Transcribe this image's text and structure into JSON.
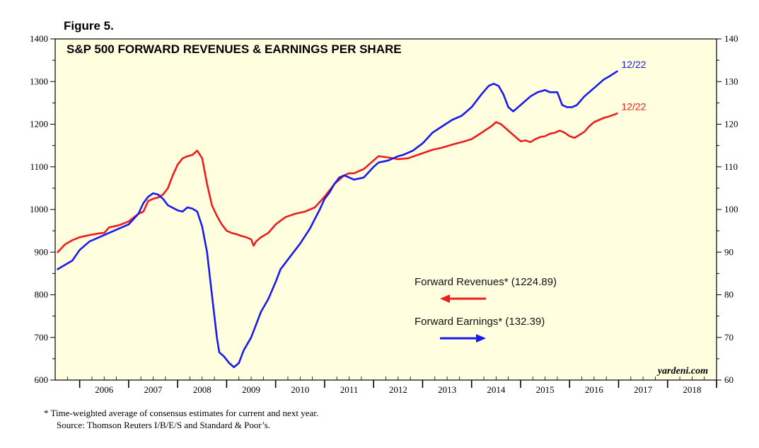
{
  "figure_label": "Figure 5.",
  "chart_data": {
    "type": "line",
    "title": "S&P 500 FORWARD REVENUES & EARNINGS PER SHARE",
    "x_range": [
      2005.5,
      2019.0
    ],
    "x_ticks": [
      "2006",
      "2007",
      "2008",
      "2009",
      "2010",
      "2011",
      "2012",
      "2013",
      "2014",
      "2015",
      "2016",
      "2017",
      "2018"
    ],
    "y_left": {
      "range": [
        600,
        1400
      ],
      "ticks": [
        "600",
        "700",
        "800",
        "900",
        "1000",
        "1100",
        "1200",
        "1300",
        "1400"
      ]
    },
    "y_right": {
      "range": [
        60,
        140
      ],
      "ticks": [
        "60",
        "70",
        "80",
        "90",
        "100",
        "110",
        "120",
        "130",
        "140"
      ]
    },
    "series": [
      {
        "name": "Forward Revenues* (1224.89)",
        "axis": "left",
        "color": "#ee1c1c",
        "end_label": "12/22",
        "points": [
          [
            2005.55,
            900
          ],
          [
            2005.7,
            918
          ],
          [
            2005.85,
            928
          ],
          [
            2006.0,
            935
          ],
          [
            2006.2,
            940
          ],
          [
            2006.4,
            944
          ],
          [
            2006.5,
            945
          ],
          [
            2006.6,
            958
          ],
          [
            2006.8,
            963
          ],
          [
            2007.0,
            972
          ],
          [
            2007.2,
            990
          ],
          [
            2007.3,
            995
          ],
          [
            2007.4,
            1020
          ],
          [
            2007.5,
            1025
          ],
          [
            2007.6,
            1028
          ],
          [
            2007.7,
            1035
          ],
          [
            2007.8,
            1050
          ],
          [
            2007.9,
            1080
          ],
          [
            2008.0,
            1105
          ],
          [
            2008.1,
            1120
          ],
          [
            2008.2,
            1125
          ],
          [
            2008.3,
            1128
          ],
          [
            2008.4,
            1138
          ],
          [
            2008.5,
            1120
          ],
          [
            2008.6,
            1060
          ],
          [
            2008.7,
            1010
          ],
          [
            2008.8,
            985
          ],
          [
            2008.9,
            965
          ],
          [
            2009.0,
            950
          ],
          [
            2009.1,
            945
          ],
          [
            2009.2,
            942
          ],
          [
            2009.3,
            938
          ],
          [
            2009.4,
            935
          ],
          [
            2009.5,
            930
          ],
          [
            2009.55,
            915
          ],
          [
            2009.6,
            925
          ],
          [
            2009.7,
            935
          ],
          [
            2009.85,
            945
          ],
          [
            2010.0,
            965
          ],
          [
            2010.2,
            982
          ],
          [
            2010.4,
            990
          ],
          [
            2010.6,
            995
          ],
          [
            2010.8,
            1005
          ],
          [
            2011.0,
            1030
          ],
          [
            2011.2,
            1060
          ],
          [
            2011.4,
            1080
          ],
          [
            2011.5,
            1085
          ],
          [
            2011.6,
            1085
          ],
          [
            2011.8,
            1095
          ],
          [
            2012.0,
            1115
          ],
          [
            2012.1,
            1125
          ],
          [
            2012.3,
            1122
          ],
          [
            2012.5,
            1118
          ],
          [
            2012.7,
            1120
          ],
          [
            2012.9,
            1128
          ],
          [
            2013.0,
            1132
          ],
          [
            2013.2,
            1140
          ],
          [
            2013.4,
            1145
          ],
          [
            2013.6,
            1152
          ],
          [
            2013.8,
            1158
          ],
          [
            2014.0,
            1165
          ],
          [
            2014.2,
            1180
          ],
          [
            2014.4,
            1195
          ],
          [
            2014.5,
            1205
          ],
          [
            2014.6,
            1200
          ],
          [
            2014.7,
            1190
          ],
          [
            2014.8,
            1180
          ],
          [
            2014.9,
            1170
          ],
          [
            2015.0,
            1160
          ],
          [
            2015.1,
            1162
          ],
          [
            2015.2,
            1158
          ],
          [
            2015.3,
            1165
          ],
          [
            2015.4,
            1170
          ],
          [
            2015.5,
            1172
          ],
          [
            2015.6,
            1178
          ],
          [
            2015.7,
            1180
          ],
          [
            2015.8,
            1185
          ],
          [
            2015.9,
            1180
          ],
          [
            2016.0,
            1172
          ],
          [
            2016.1,
            1168
          ],
          [
            2016.2,
            1175
          ],
          [
            2016.3,
            1182
          ],
          [
            2016.4,
            1195
          ],
          [
            2016.5,
            1205
          ],
          [
            2016.6,
            1210
          ],
          [
            2016.7,
            1215
          ],
          [
            2016.8,
            1218
          ],
          [
            2016.9,
            1222
          ],
          [
            2016.97,
            1225
          ]
        ]
      },
      {
        "name": "Forward Earnings* (132.39)",
        "axis": "right",
        "color": "#1a1aee",
        "end_label": "12/22",
        "points": [
          [
            2005.55,
            86.0
          ],
          [
            2005.7,
            87.0
          ],
          [
            2005.85,
            88.0
          ],
          [
            2006.0,
            90.5
          ],
          [
            2006.2,
            92.5
          ],
          [
            2006.4,
            93.5
          ],
          [
            2006.6,
            94.5
          ],
          [
            2006.8,
            95.5
          ],
          [
            2007.0,
            96.5
          ],
          [
            2007.2,
            99.0
          ],
          [
            2007.3,
            101.5
          ],
          [
            2007.4,
            103.0
          ],
          [
            2007.5,
            103.8
          ],
          [
            2007.6,
            103.5
          ],
          [
            2007.7,
            102.5
          ],
          [
            2007.8,
            101.0
          ],
          [
            2008.0,
            99.8
          ],
          [
            2008.1,
            99.5
          ],
          [
            2008.2,
            100.5
          ],
          [
            2008.3,
            100.2
          ],
          [
            2008.4,
            99.5
          ],
          [
            2008.5,
            96.0
          ],
          [
            2008.6,
            90.0
          ],
          [
            2008.7,
            80.0
          ],
          [
            2008.8,
            70.0
          ],
          [
            2008.85,
            66.5
          ],
          [
            2008.95,
            65.5
          ],
          [
            2009.05,
            64.0
          ],
          [
            2009.15,
            63.0
          ],
          [
            2009.25,
            64.0
          ],
          [
            2009.35,
            67.0
          ],
          [
            2009.5,
            70.0
          ],
          [
            2009.6,
            73.0
          ],
          [
            2009.7,
            76.0
          ],
          [
            2009.85,
            79.0
          ],
          [
            2010.0,
            83.0
          ],
          [
            2010.1,
            86.0
          ],
          [
            2010.3,
            89.0
          ],
          [
            2010.5,
            92.0
          ],
          [
            2010.7,
            95.5
          ],
          [
            2010.9,
            100.0
          ],
          [
            2011.0,
            102.5
          ],
          [
            2011.1,
            104.0
          ],
          [
            2011.2,
            106.0
          ],
          [
            2011.3,
            107.5
          ],
          [
            2011.4,
            108.0
          ],
          [
            2011.5,
            107.5
          ],
          [
            2011.6,
            107.0
          ],
          [
            2011.8,
            107.5
          ],
          [
            2012.0,
            110.0
          ],
          [
            2012.1,
            111.0
          ],
          [
            2012.3,
            111.5
          ],
          [
            2012.5,
            112.5
          ],
          [
            2012.6,
            112.8
          ],
          [
            2012.8,
            113.8
          ],
          [
            2013.0,
            115.5
          ],
          [
            2013.2,
            118.0
          ],
          [
            2013.4,
            119.5
          ],
          [
            2013.6,
            121.0
          ],
          [
            2013.8,
            122.0
          ],
          [
            2014.0,
            124.0
          ],
          [
            2014.2,
            127.0
          ],
          [
            2014.35,
            129.0
          ],
          [
            2014.45,
            129.5
          ],
          [
            2014.55,
            129.0
          ],
          [
            2014.65,
            127.0
          ],
          [
            2014.75,
            124.0
          ],
          [
            2014.85,
            123.0
          ],
          [
            2014.95,
            124.0
          ],
          [
            2015.05,
            125.0
          ],
          [
            2015.2,
            126.5
          ],
          [
            2015.35,
            127.5
          ],
          [
            2015.5,
            128.0
          ],
          [
            2015.6,
            127.5
          ],
          [
            2015.75,
            127.5
          ],
          [
            2015.85,
            124.5
          ],
          [
            2015.95,
            124.0
          ],
          [
            2016.05,
            124.0
          ],
          [
            2016.15,
            124.5
          ],
          [
            2016.3,
            126.5
          ],
          [
            2016.5,
            128.5
          ],
          [
            2016.7,
            130.5
          ],
          [
            2016.85,
            131.5
          ],
          [
            2016.97,
            132.4
          ]
        ]
      }
    ],
    "legend": [
      {
        "label": "Forward Revenues* (1224.89)",
        "arrow": "left",
        "color": "#ee1c1c"
      },
      {
        "label": "Forward Earnings* (132.39)",
        "arrow": "right",
        "color": "#1a1aee"
      }
    ],
    "background_color": "#ffffe0",
    "watermark": "yardeni.com"
  },
  "footnote": {
    "line1": "*   Time-weighted average of consensus estimates for current and next year.",
    "line2": "Source: Thomson Reuters I/B/E/S and Standard & Poor’s."
  }
}
